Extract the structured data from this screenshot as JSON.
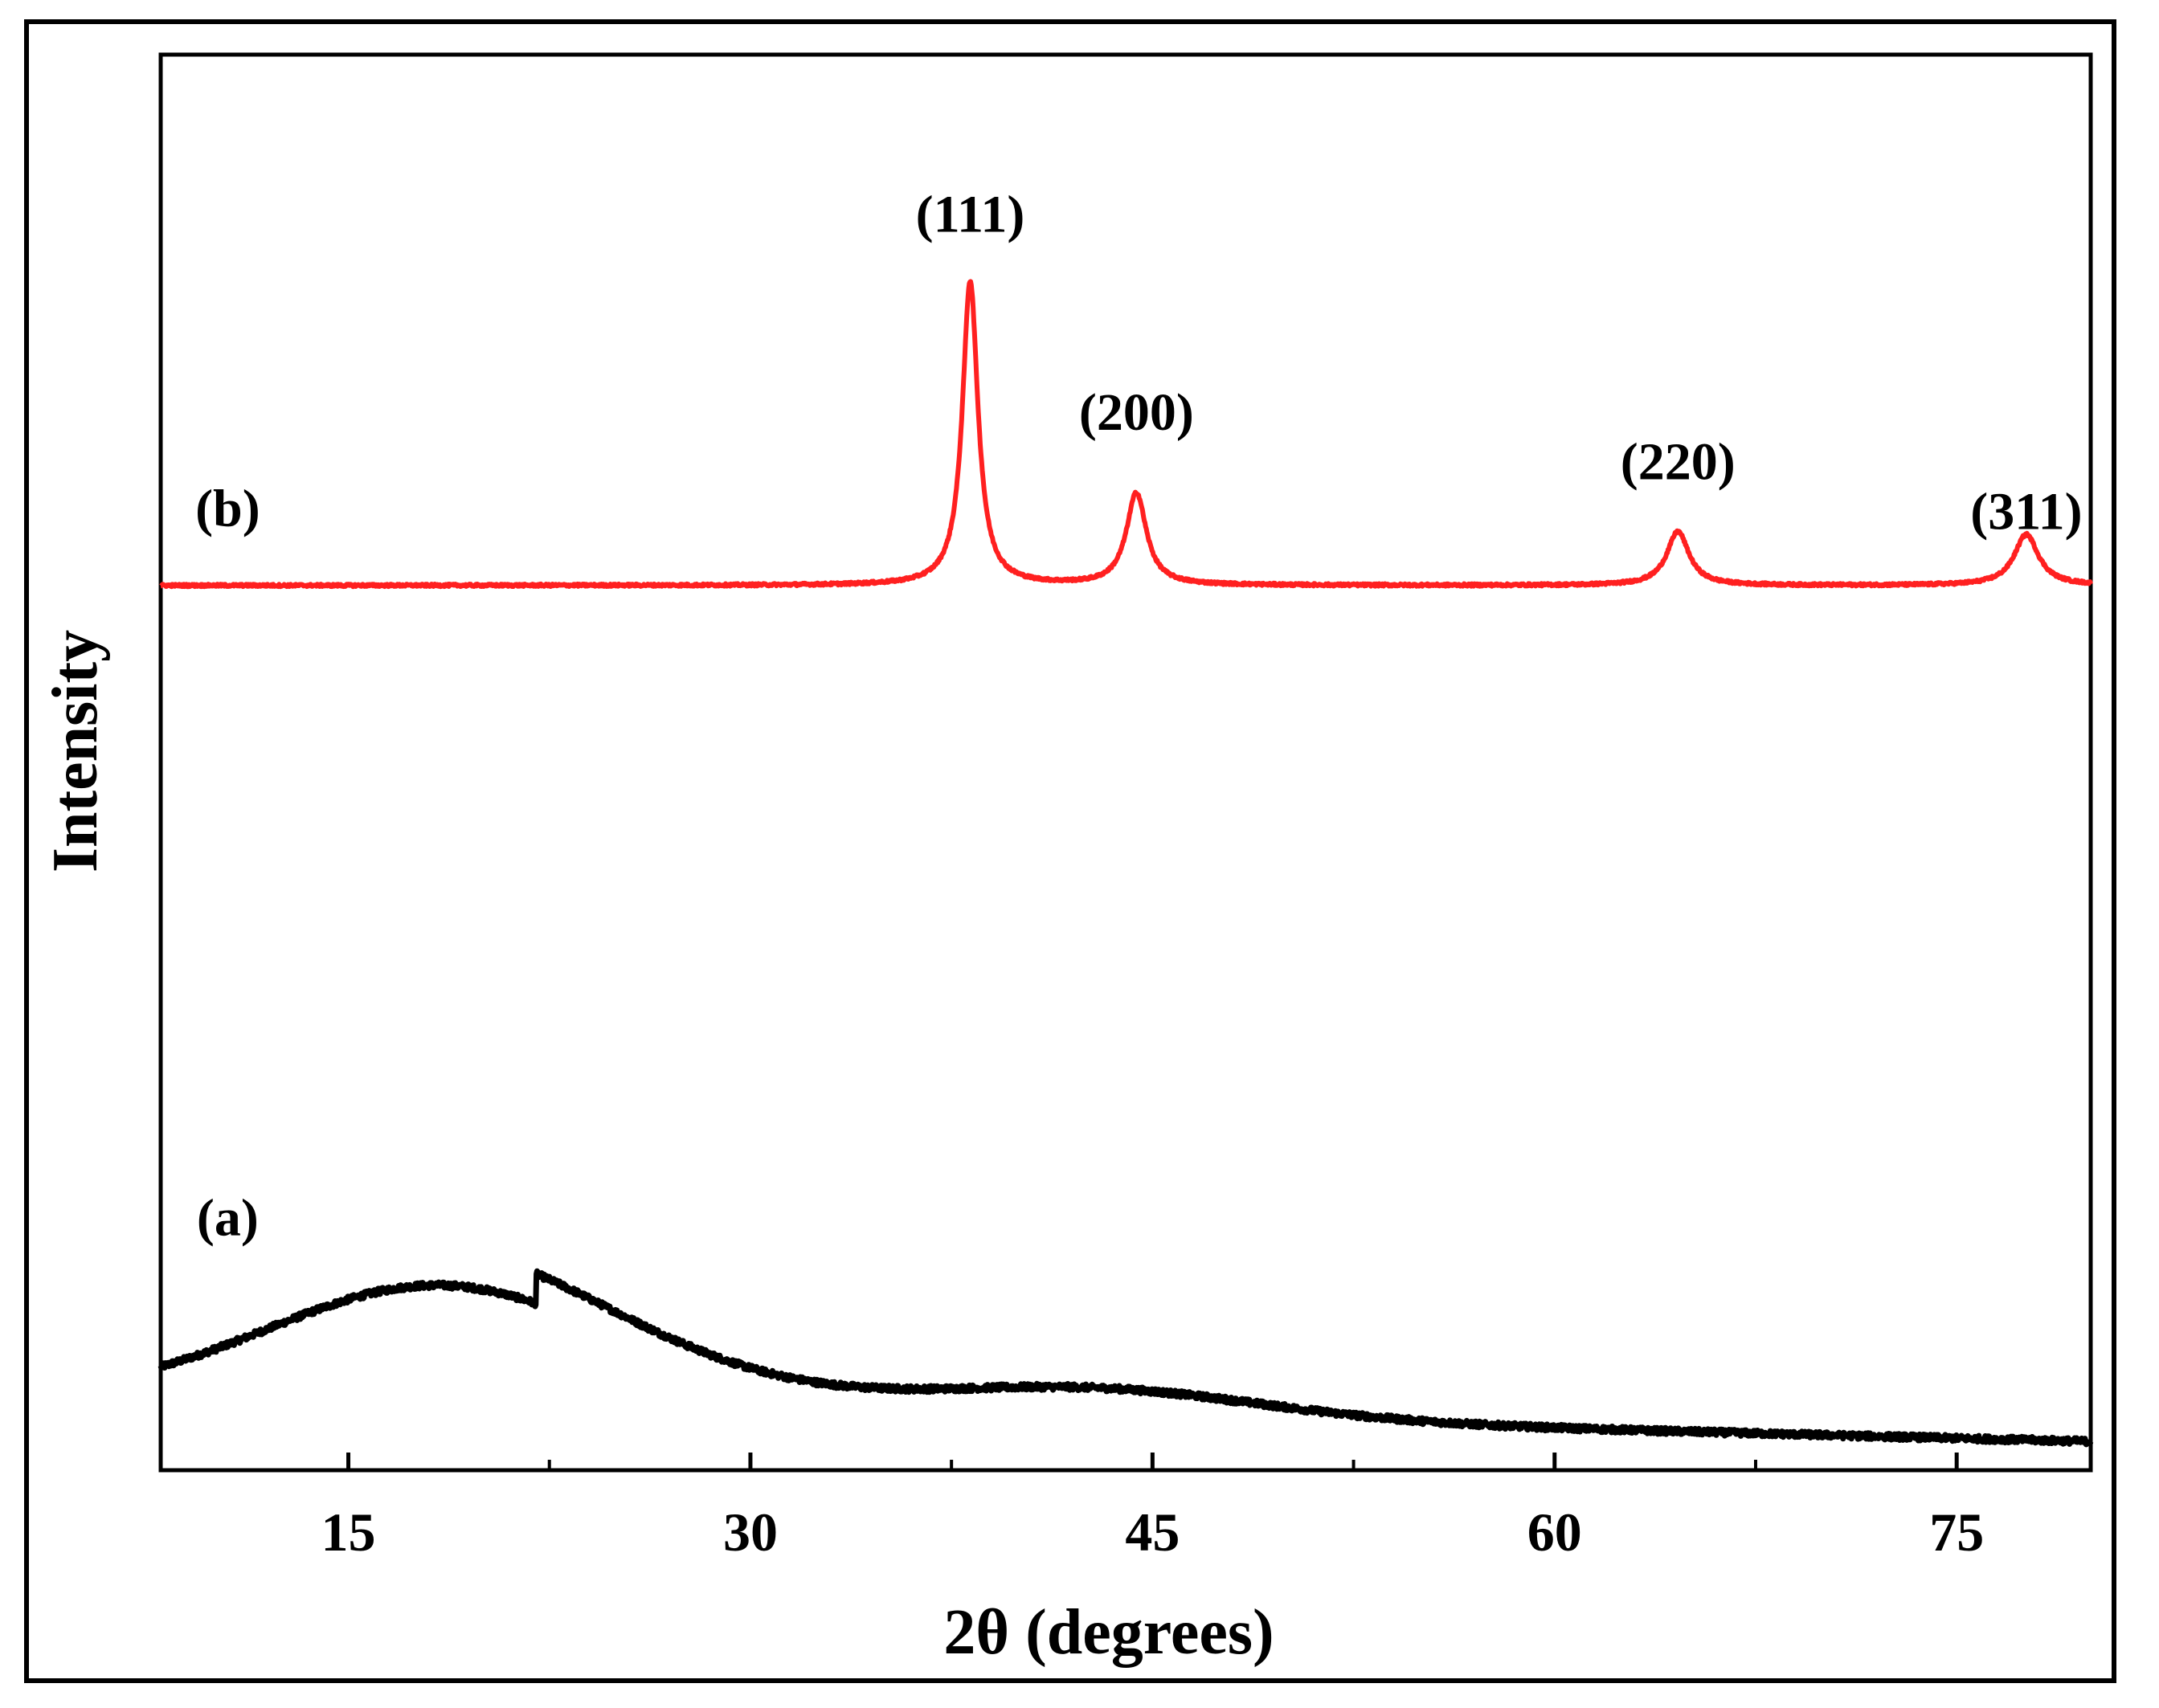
{
  "chart_data": {
    "type": "line",
    "title": "",
    "xlabel": "2θ (degrees)",
    "ylabel": "Intensity",
    "xlim": [
      8,
      80
    ],
    "ylim": [
      0,
      100
    ],
    "x_ticks": [
      15,
      30,
      45,
      60,
      75
    ],
    "x_tick_labels": [
      "15",
      "30",
      "45",
      "60",
      "75"
    ],
    "x_minor_ticks": [
      22.5,
      37.5,
      52.5,
      67.5
    ],
    "y_ticks": [],
    "grid": false,
    "legend": "none",
    "series": [
      {
        "name": "(a)",
        "label": "(a)",
        "color": "#000000",
        "kind": "amorphous",
        "baseline_start": 5,
        "baseline_end": 2,
        "broad_peaks": [
          {
            "center": 18.5,
            "height": 8.5,
            "width": 6.5
          },
          {
            "center": 43,
            "height": 1.8,
            "width": 6
          }
        ],
        "decay_tail": {
          "start": 22,
          "amplitude": 6,
          "scale": 14
        },
        "noise": 0.45
      },
      {
        "name": "(b)",
        "label": "(b)",
        "color": "#ff2020",
        "kind": "crystalline",
        "baseline": 62.5,
        "peaks": [
          {
            "hkl": "(111)",
            "center": 38.2,
            "height": 21.5,
            "width": 0.35
          },
          {
            "hkl": "(200)",
            "center": 44.4,
            "height": 6.5,
            "width": 0.45
          },
          {
            "hkl": "(220)",
            "center": 64.6,
            "height": 3.8,
            "width": 0.5
          },
          {
            "hkl": "(311)",
            "center": 77.6,
            "height": 3.6,
            "width": 0.55
          }
        ],
        "noise": 0.18
      }
    ],
    "annotations": [
      {
        "text": "(111)",
        "x": 38.2,
        "y": 87.5
      },
      {
        "text": "(200)",
        "x": 44.4,
        "y": 73.5
      },
      {
        "text": "(220)",
        "x": 64.6,
        "y": 70.0
      },
      {
        "text": "(311)",
        "x": 77.6,
        "y": 66.5
      },
      {
        "text": "(b)",
        "x": 10.5,
        "y": 66.7
      },
      {
        "text": "(a)",
        "x": 10.5,
        "y": 16.6
      }
    ]
  }
}
